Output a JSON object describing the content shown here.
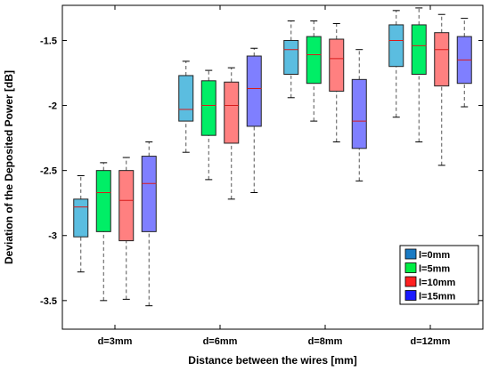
{
  "chart_data": {
    "type": "box",
    "categories": [
      "d=3mm",
      "d=6mm",
      "d=8mm",
      "d=12mm"
    ],
    "xlabel": "Distance between the wires [mm]",
    "ylabel": "Deviation of the Deposited Power [dB]",
    "ylim": [
      -3.72,
      -1.23
    ],
    "yticks": [
      -3.5,
      -3,
      -2.5,
      -2,
      -1.5
    ],
    "ytick_labels": [
      "-3.5",
      "-3",
      "-2.5",
      "-2",
      "-1.5"
    ],
    "legend_position": "lower-right",
    "grid": false,
    "series": [
      {
        "name": "l=0mm",
        "legend_color": "#1a7bc4",
        "box_color": "#5bbde0",
        "boxes": [
          {
            "whisker_low": -3.28,
            "q1": -3.01,
            "median": -2.78,
            "q3": -2.72,
            "whisker_high": -2.54
          },
          {
            "whisker_low": -2.36,
            "q1": -2.12,
            "median": -2.03,
            "q3": -1.77,
            "whisker_high": -1.66
          },
          {
            "whisker_low": -1.94,
            "q1": -1.76,
            "median": -1.57,
            "q3": -1.5,
            "whisker_high": -1.35
          },
          {
            "whisker_low": -2.09,
            "q1": -1.7,
            "median": -1.5,
            "q3": -1.38,
            "whisker_high": -1.27
          }
        ]
      },
      {
        "name": "l=5mm",
        "legend_color": "#00ee44",
        "box_color": "#00ee66",
        "boxes": [
          {
            "whisker_low": -3.5,
            "q1": -2.97,
            "median": -2.67,
            "q3": -2.5,
            "whisker_high": -2.44
          },
          {
            "whisker_low": -2.57,
            "q1": -2.23,
            "median": -2.0,
            "q3": -1.81,
            "whisker_high": -1.73
          },
          {
            "whisker_low": -2.12,
            "q1": -1.83,
            "median": -1.61,
            "q3": -1.47,
            "whisker_high": -1.35
          },
          {
            "whisker_low": -2.28,
            "q1": -1.76,
            "median": -1.54,
            "q3": -1.38,
            "whisker_high": -1.25
          }
        ]
      },
      {
        "name": "l=10mm",
        "legend_color": "#ff2020",
        "box_color": "#ff8080",
        "boxes": [
          {
            "whisker_low": -3.49,
            "q1": -3.04,
            "median": -2.73,
            "q3": -2.5,
            "whisker_high": -2.4
          },
          {
            "whisker_low": -2.72,
            "q1": -2.29,
            "median": -2.0,
            "q3": -1.82,
            "whisker_high": -1.71
          },
          {
            "whisker_low": -2.28,
            "q1": -1.89,
            "median": -1.64,
            "q3": -1.49,
            "whisker_high": -1.37
          },
          {
            "whisker_low": -2.46,
            "q1": -1.85,
            "median": -1.57,
            "q3": -1.44,
            "whisker_high": -1.3
          }
        ]
      },
      {
        "name": "l=15mm",
        "legend_color": "#1a1aff",
        "box_color": "#7f7fff",
        "boxes": [
          {
            "whisker_low": -3.54,
            "q1": -2.97,
            "median": -2.6,
            "q3": -2.39,
            "whisker_high": -2.28
          },
          {
            "whisker_low": -2.67,
            "q1": -2.16,
            "median": -1.87,
            "q3": -1.62,
            "whisker_high": -1.56
          },
          {
            "whisker_low": -2.58,
            "q1": -2.33,
            "median": -2.12,
            "q3": -1.8,
            "whisker_high": -1.57
          },
          {
            "whisker_low": -2.01,
            "q1": -1.83,
            "median": -1.65,
            "q3": -1.47,
            "whisker_high": -1.33
          }
        ]
      }
    ]
  }
}
